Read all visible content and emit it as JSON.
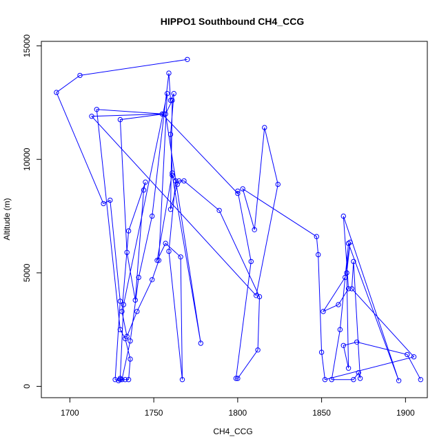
{
  "chart_data": {
    "type": "line",
    "title": "HIPPO1 Southbound CH4_CCG",
    "xlabel": "CH4_CCG",
    "ylabel": "Altitude (m)",
    "xlim": [
      1683,
      1913
    ],
    "ylim": [
      -500,
      15200
    ],
    "xticks": [
      1700,
      1750,
      1800,
      1850,
      1900
    ],
    "yticks": [
      0,
      5000,
      10000,
      15000
    ],
    "grid": false,
    "legend": "none",
    "color": "#0000ff",
    "marker": "open-circle",
    "series": [
      {
        "x": [
          1770,
          1706,
          1692,
          1720,
          1724,
          1730,
          1727,
          1729,
          1730,
          1733,
          1735,
          1736,
          1733,
          1730,
          1716,
          1756,
          1730,
          1734,
          1739,
          1744,
          1745,
          1735,
          1731,
          1734,
          1740,
          1749,
          1753,
          1758,
          1732,
          1730,
          1731,
          1736,
          1741,
          1749,
          1759,
          1760,
          1762,
          1760,
          1761,
          1752,
          1757,
          1766,
          1767,
          1759,
          1763,
          1761,
          1778,
          1757,
          1761,
          1760,
          1764,
          1765,
          1768,
          1789,
          1813,
          1812,
          1800,
          1799,
          1808,
          1800,
          1800,
          1755,
          1713,
          1811,
          1824,
          1816,
          1810,
          1803,
          1847,
          1848,
          1850,
          1852,
          1905,
          1868,
          1869,
          1873,
          1872,
          1869,
          1856,
          1861,
          1866,
          1896,
          1863,
          1866,
          1860,
          1851,
          1864,
          1867,
          1865,
          1866,
          1863,
          1871,
          1901,
          1909
        ],
        "y": [
          14400,
          13700,
          12950,
          8050,
          8200,
          3750,
          300,
          250,
          300,
          300,
          300,
          1200,
          2100,
          2500,
          12200,
          12000,
          11750,
          5900,
          3800,
          8650,
          9000,
          6850,
          3300,
          2200,
          3300,
          4700,
          5550,
          12900,
          3600,
          350,
          300,
          2000,
          4800,
          7500,
          13800,
          12600,
          12900,
          11100,
          9400,
          5550,
          6300,
          5700,
          300,
          5950,
          9050,
          9300,
          1900,
          12000,
          12600,
          7800,
          8900,
          9050,
          9050,
          7750,
          3950,
          1600,
          350,
          350,
          5500,
          8600,
          8500,
          12000,
          11900,
          4000,
          8900,
          11400,
          6900,
          8700,
          6600,
          5800,
          1500,
          300,
          1300,
          4300,
          5500,
          350,
          600,
          300,
          300,
          2500,
          6300,
          250,
          7500,
          4300,
          3600,
          3300,
          4800,
          6350,
          5000,
          800,
          1800,
          1950,
          1400,
          300
        ]
      }
    ]
  }
}
